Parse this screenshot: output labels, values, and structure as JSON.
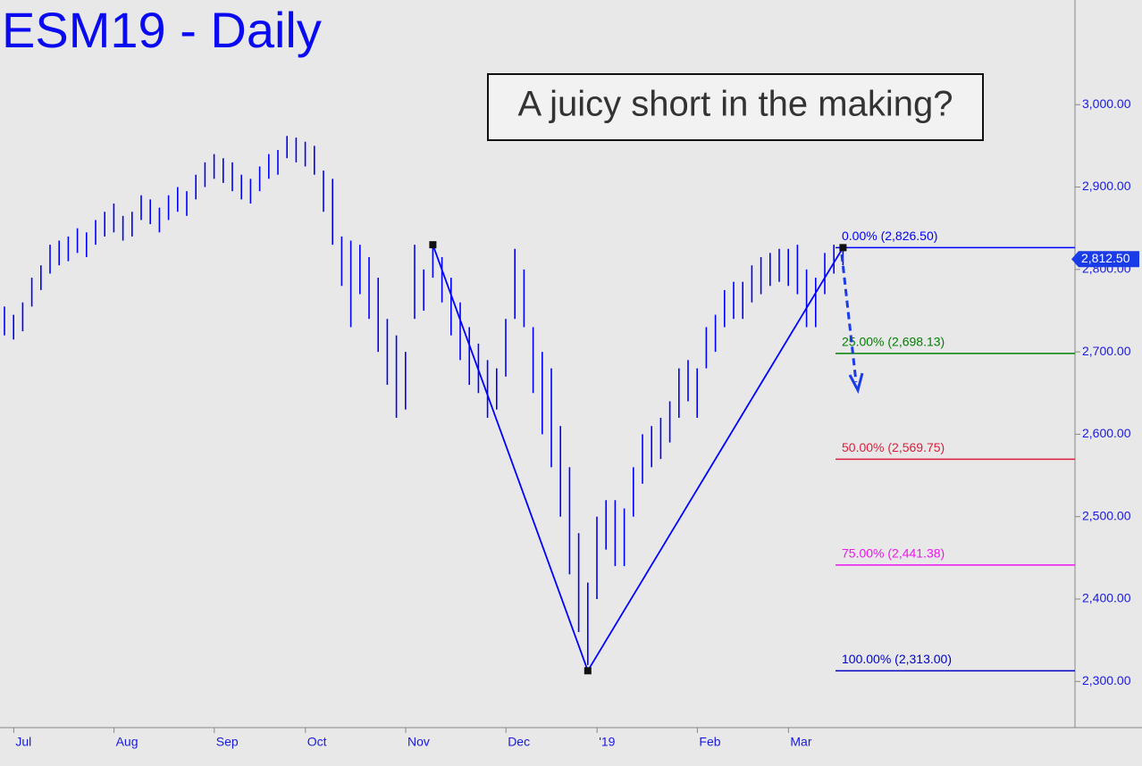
{
  "chart_data": {
    "type": "ohlc",
    "title": "ESM19 - Daily",
    "annotation": "A juicy short in the making?",
    "color": "#0000ff",
    "categories": [
      null,
      null,
      "Jul",
      null,
      null,
      null,
      null,
      null,
      null,
      null,
      null,
      null,
      null,
      "Aug",
      null,
      null,
      null,
      null,
      null,
      null,
      null,
      null,
      null,
      null,
      "Sep",
      null,
      null,
      null,
      null,
      null,
      null,
      null,
      null,
      null,
      "Oct",
      null,
      null,
      null,
      null,
      null,
      null,
      null,
      null,
      null,
      null,
      "Nov",
      null,
      null,
      null,
      null,
      null,
      null,
      null,
      null,
      null,
      null,
      "Dec",
      null,
      null,
      null,
      null,
      null,
      null,
      null,
      null,
      null,
      "'19",
      null,
      null,
      null,
      null,
      null,
      null,
      null,
      null,
      null,
      null,
      "Feb",
      null,
      null,
      null,
      null,
      null,
      null,
      null,
      null,
      null,
      "Mar",
      null,
      null,
      null,
      null,
      null
    ],
    "high": [
      2755,
      2745,
      2760,
      2790,
      2805,
      2830,
      2835,
      2840,
      2850,
      2845,
      2860,
      2870,
      2880,
      2865,
      2870,
      2890,
      2885,
      2875,
      2890,
      2900,
      2895,
      2915,
      2930,
      2940,
      2935,
      2930,
      2915,
      2910,
      2925,
      2940,
      2945,
      2962,
      2960,
      2955,
      2950,
      2920,
      2910,
      2840,
      2835,
      2830,
      2815,
      2790,
      2740,
      2720,
      2700,
      2830,
      2800,
      2830,
      2815,
      2790,
      2760,
      2730,
      2710,
      2690,
      2680,
      2740,
      2825,
      2800,
      2730,
      2700,
      2680,
      2610,
      2560,
      2480,
      2420,
      2500,
      2520,
      2520,
      2510,
      2560,
      2600,
      2610,
      2620,
      2640,
      2680,
      2690,
      2680,
      2730,
      2745,
      2775,
      2785,
      2785,
      2805,
      2815,
      2820,
      2825,
      2825,
      2830,
      2800,
      2790,
      2820,
      2830,
      2826.5
    ],
    "low": [
      2720,
      2715,
      2725,
      2755,
      2775,
      2795,
      2805,
      2810,
      2820,
      2815,
      2830,
      2840,
      2845,
      2835,
      2840,
      2860,
      2855,
      2845,
      2860,
      2870,
      2865,
      2885,
      2900,
      2910,
      2905,
      2895,
      2885,
      2880,
      2895,
      2910,
      2915,
      2935,
      2930,
      2925,
      2915,
      2870,
      2830,
      2780,
      2730,
      2770,
      2740,
      2700,
      2660,
      2620,
      2630,
      2740,
      2750,
      2790,
      2760,
      2720,
      2690,
      2660,
      2650,
      2620,
      2630,
      2670,
      2740,
      2730,
      2650,
      2600,
      2560,
      2500,
      2430,
      2360,
      2320,
      2400,
      2460,
      2440,
      2440,
      2500,
      2540,
      2560,
      2570,
      2590,
      2620,
      2640,
      2620,
      2680,
      2700,
      2730,
      2740,
      2740,
      2760,
      2770,
      2780,
      2785,
      2780,
      2770,
      2730,
      2730,
      2770,
      2795,
      2805
    ],
    "swing": [
      null,
      null,
      null,
      null,
      null,
      null,
      null,
      null,
      null,
      null,
      null,
      null,
      null,
      null,
      null,
      null,
      null,
      null,
      null,
      null,
      null,
      null,
      null,
      null,
      null,
      null,
      null,
      null,
      null,
      null,
      null,
      null,
      null,
      null,
      null,
      null,
      null,
      null,
      null,
      null,
      null,
      null,
      null,
      null,
      null,
      null,
      null,
      2830,
      2799.6,
      2769.2,
      2738.8,
      2708.4,
      2678,
      2647.6,
      2617.2,
      2586.8,
      2556.4,
      2526,
      2495.6,
      2465.2,
      2434.8,
      2404.4,
      2374,
      2343.6,
      2313,
      2331.3,
      2349.7,
      2368,
      2386.4,
      2404.7,
      2423,
      2441.4,
      2459.7,
      2478.1,
      2496.4,
      2514.8,
      2533.1,
      2551.4,
      2569.8,
      2588.1,
      2606.5,
      2624.8,
      2643.2,
      2661.5,
      2679.8,
      2698.2,
      2716.5,
      2734.9,
      2753.2,
      2771.6,
      2789.9,
      2808.3,
      2826.5
    ],
    "levels": [
      {
        "label": "0.00% (2,826.50)",
        "value": 2826.5,
        "color": "#0000ff"
      },
      {
        "label": "25.00% (2,698.13)",
        "value": 2698.13,
        "color": "#008000"
      },
      {
        "label": "50.00% (2,569.75)",
        "value": 2569.75,
        "color": "#dc1e3c"
      },
      {
        "label": "75.00% (2,441.38)",
        "value": 2441.38,
        "color": "#f014f0"
      },
      {
        "label": "100.00% (2,313.00)",
        "value": 2313,
        "color": "#0000c8"
      }
    ],
    "last": {
      "value": 2812.5,
      "label": "2,812.50"
    },
    "ylim": [
      2244,
      3127
    ],
    "yticks": [
      {
        "value": 2300,
        "label": "2,300.00"
      },
      {
        "value": 2400,
        "label": "2,400.00"
      },
      {
        "value": 2500,
        "label": "2,500.00"
      },
      {
        "value": 2600,
        "label": "2,600.00"
      },
      {
        "value": 2700,
        "label": "2,700.00"
      },
      {
        "value": 2800,
        "label": "2,800.00"
      },
      {
        "value": 2900,
        "label": "2,900.00"
      },
      {
        "value": 3000,
        "label": "3,000.00"
      }
    ]
  }
}
